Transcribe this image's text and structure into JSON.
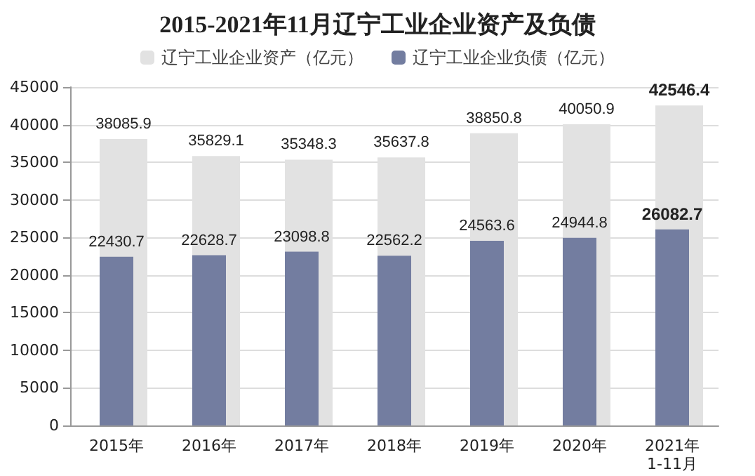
{
  "chart_data": {
    "type": "bar",
    "title": "2015-2021年11月辽宁工业企业资产及负债",
    "categories": [
      "2015年",
      "2016年",
      "2017年",
      "2018年",
      "2019年",
      "2020年",
      "2021年\n1-11月"
    ],
    "series": [
      {
        "name": "辽宁工业企业资产（亿元）",
        "color": "#e2e2e2",
        "values": [
          38085.9,
          35829.1,
          35348.3,
          35637.8,
          38850.8,
          40050.9,
          42546.4
        ]
      },
      {
        "name": "辽宁工业企业负债（亿元）",
        "color": "#737da0",
        "values": [
          22430.7,
          22628.7,
          23098.8,
          22562.2,
          24563.6,
          24944.8,
          26082.7
        ]
      }
    ],
    "ylim": [
      0,
      45000
    ],
    "yticks": [
      0,
      5000,
      10000,
      15000,
      20000,
      25000,
      30000,
      35000,
      40000,
      45000
    ],
    "grid": "y",
    "legend": "top",
    "data_labels": true
  }
}
